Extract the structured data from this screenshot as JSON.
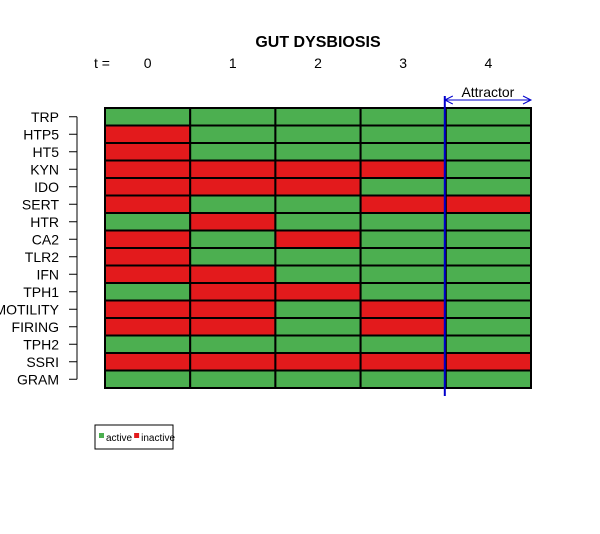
{
  "chart_data": {
    "type": "heatmap",
    "title": "GUT DYSBIOSIS",
    "time_prefix": "t =",
    "time_steps": [
      "0",
      "1",
      "2",
      "3",
      "4"
    ],
    "rows": [
      "TRP",
      "HTP5",
      "HT5",
      "KYN",
      "IDO",
      "SERT",
      "HTR",
      "CA2",
      "TLR2",
      "IFN",
      "TPH1",
      "MOTILITY",
      "FIRING",
      "TPH2",
      "SSRI",
      "GRAM"
    ],
    "values": [
      [
        1,
        1,
        1,
        1,
        1
      ],
      [
        0,
        1,
        1,
        1,
        1
      ],
      [
        0,
        1,
        1,
        1,
        1
      ],
      [
        0,
        0,
        0,
        0,
        1
      ],
      [
        0,
        0,
        0,
        1,
        1
      ],
      [
        0,
        1,
        1,
        0,
        0
      ],
      [
        1,
        0,
        1,
        1,
        1
      ],
      [
        0,
        1,
        0,
        1,
        1
      ],
      [
        0,
        1,
        1,
        1,
        1
      ],
      [
        0,
        0,
        1,
        1,
        1
      ],
      [
        1,
        0,
        0,
        1,
        1
      ],
      [
        0,
        0,
        1,
        0,
        1
      ],
      [
        0,
        0,
        1,
        0,
        1
      ],
      [
        1,
        1,
        1,
        1,
        1
      ],
      [
        0,
        0,
        0,
        0,
        0
      ],
      [
        1,
        1,
        1,
        1,
        1
      ]
    ],
    "value_meaning": {
      "1": "active",
      "0": "inactive"
    },
    "attractor": {
      "label": "Attractor",
      "start_step": 4
    },
    "legend": [
      {
        "label": "active",
        "color": "#4caf50"
      },
      {
        "label": "inactive",
        "color": "#e31a1c"
      }
    ],
    "colors": {
      "active": "#4caf50",
      "inactive": "#e31a1c",
      "attractor_line": "#0000cc",
      "border": "#000000"
    },
    "legend_position": "bottom-left"
  }
}
